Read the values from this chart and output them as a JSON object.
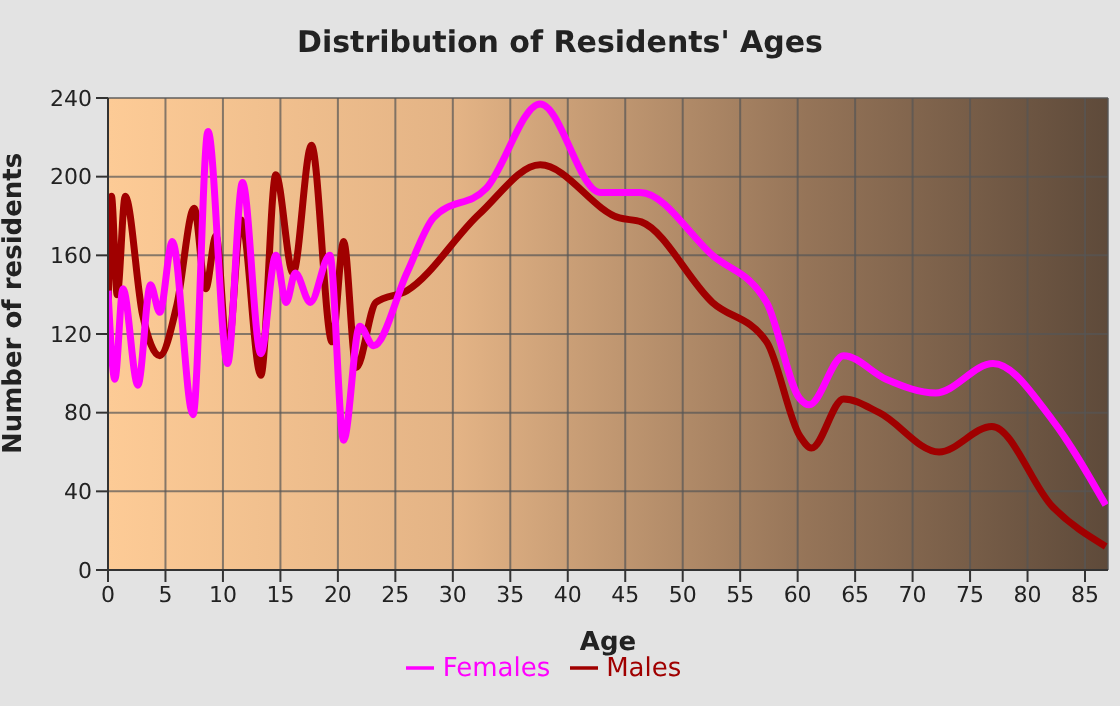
{
  "chart_data": {
    "type": "line",
    "title": "Distribution of Residents' Ages",
    "xlabel": "Age",
    "ylabel": "Number of residents",
    "xlim": [
      0,
      87
    ],
    "xticks": [
      0,
      5,
      10,
      15,
      20,
      25,
      30,
      35,
      40,
      45,
      50,
      55,
      60,
      65,
      70,
      75,
      80,
      85
    ],
    "ylim": [
      0,
      240
    ],
    "yticks": [
      0,
      40,
      80,
      120,
      160,
      200,
      240
    ],
    "grid": true,
    "legend": "bottom",
    "marker": "none",
    "line_style": "solid",
    "series": [
      {
        "name": "Males",
        "color": "#a00000",
        "x": [
          0,
          0.3,
          0.8,
          1.5,
          3,
          4.5,
          6,
          7.5,
          8.5,
          9.4,
          10.4,
          11.6,
          13.3,
          14.6,
          16.1,
          17.7,
          19.5,
          20.5,
          21.6,
          23.3,
          26,
          32.3,
          37.6,
          44.5,
          46.4,
          52.6,
          57.3,
          60.2,
          61.2,
          64,
          67.1,
          72.3,
          76.9,
          82.2,
          86.8
        ],
        "values": [
          130,
          190,
          140,
          190,
          130,
          109,
          135,
          184,
          143,
          170,
          110,
          178,
          99,
          201,
          151,
          216,
          116,
          167,
          103,
          136,
          142,
          181,
          206,
          179,
          177,
          136,
          116,
          68,
          62,
          87,
          80,
          60,
          73,
          32,
          12
        ]
      },
      {
        "name": "Females",
        "color": "#ff00ff",
        "x": [
          0,
          0.6,
          1.3,
          2.6,
          3.7,
          4.5,
          5.6,
          7.4,
          8.7,
          10.4,
          11.7,
          13.3,
          14.6,
          15.5,
          16.3,
          17.6,
          19.3,
          20.5,
          21.9,
          23.1,
          26,
          28.3,
          32.9,
          37.6,
          42.8,
          46.3,
          52.6,
          57.3,
          60.2,
          61,
          64,
          67.7,
          72,
          77,
          82.2,
          86.8
        ],
        "values": [
          142,
          97,
          143,
          94,
          145,
          131,
          167,
          79,
          223,
          105,
          197,
          110,
          160,
          136,
          151,
          136,
          160,
          66,
          124,
          114,
          151,
          179,
          194,
          237,
          192,
          192,
          160,
          136,
          87,
          84,
          109,
          97,
          90,
          105,
          76,
          33
        ]
      }
    ]
  }
}
